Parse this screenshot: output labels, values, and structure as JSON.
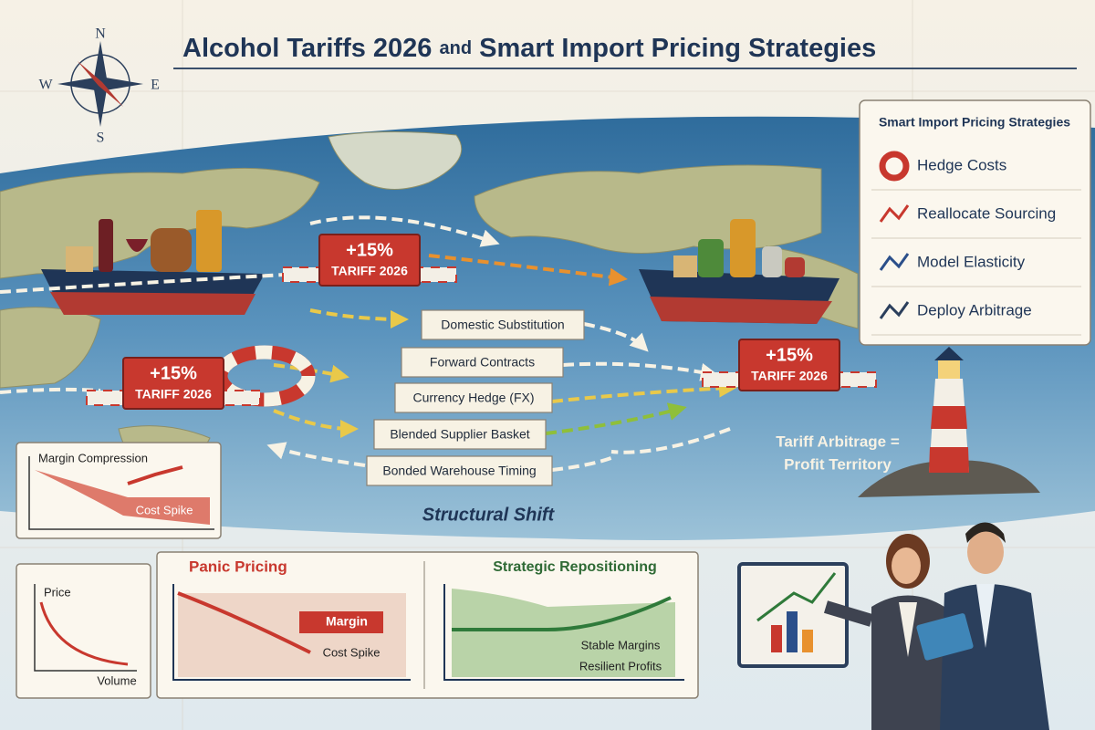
{
  "header": {
    "title_main": "Alcohol Tariffs 2026",
    "title_connector": "and",
    "title_rest": "Smart Import Pricing Strategies"
  },
  "compass": {
    "n": "N",
    "e": "E",
    "s": "S",
    "w": "W"
  },
  "tariff_badges": [
    {
      "rate": "+15%",
      "label": "TARIFF 2026"
    },
    {
      "rate": "+15%",
      "label": "TARIFF 2026"
    },
    {
      "rate": "+15%",
      "label": "TARIFF 2026"
    }
  ],
  "routes": [
    "Domestic Substitution",
    "Forward Contracts",
    "Currency Hedge (FX)",
    "Blended Supplier Basket",
    "Bonded Warehouse Timing"
  ],
  "route_caption": "Structural Shift",
  "sidebar": {
    "title": "Smart Import Pricing Strategies",
    "items": [
      "Hedge Costs",
      "Reallocate Sourcing",
      "Model Elasticity",
      "Deploy Arbitrage"
    ]
  },
  "arbitrage_note": {
    "line1": "Tariff Arbitrage =",
    "line2": "Profit Territory"
  },
  "margin_panel": {
    "title": "Margin Compression",
    "label": "Cost Spike"
  },
  "elasticity_panel": {
    "y_label": "Price",
    "x_label": "Volume"
  },
  "panic_panel": {
    "title": "Panic Pricing",
    "margin_label": "Margin",
    "spike_label": "Cost Spike"
  },
  "strategic_panel": {
    "title": "Strategic Repositioning",
    "lines": [
      "Stable Margins",
      "Resilient Profits"
    ]
  }
}
